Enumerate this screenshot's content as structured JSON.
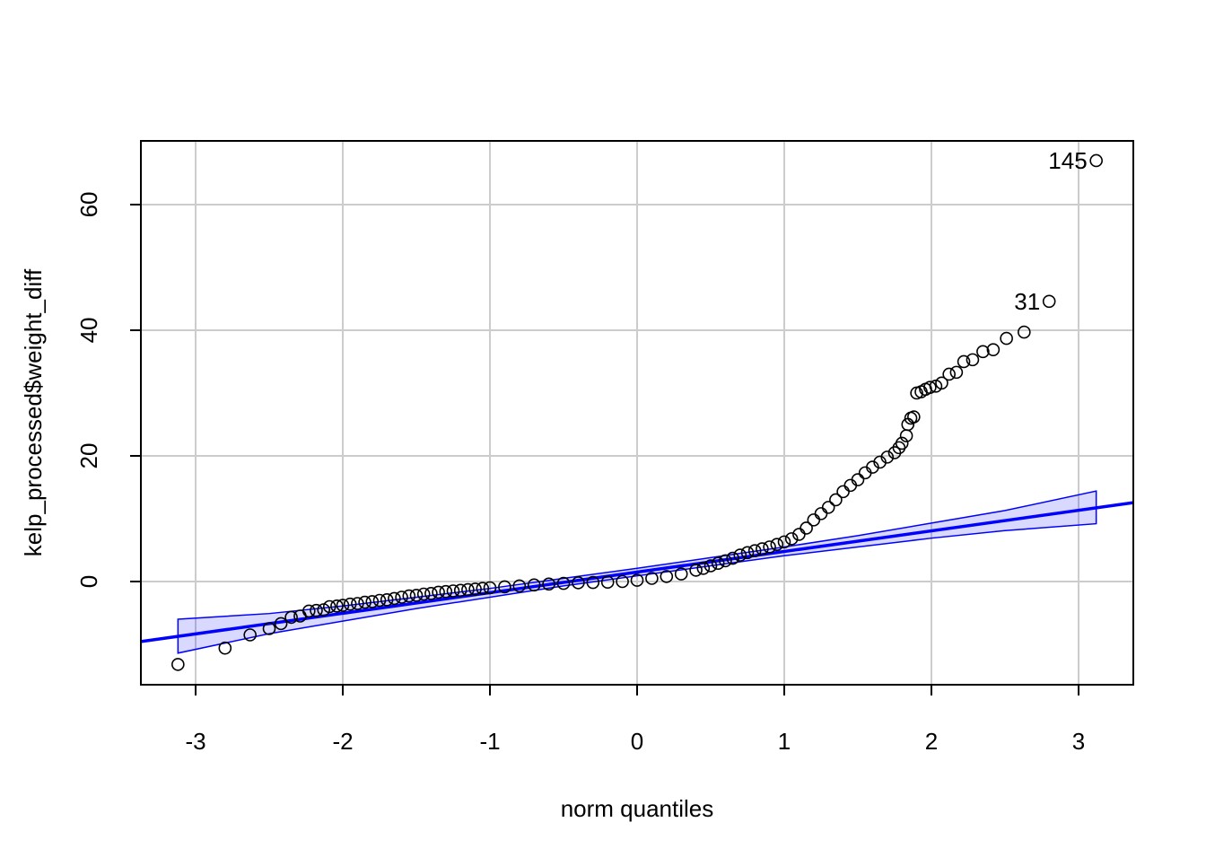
{
  "chart_data": {
    "type": "qqplot",
    "x_label": "norm quantiles",
    "y_label": "kelp_processed$weight_diff",
    "xlim": [
      -3.372,
      3.372
    ],
    "ylim": [
      -16.43,
      70.14
    ],
    "xticks": [
      -3,
      -2,
      -1,
      0,
      1,
      2,
      3
    ],
    "yticks": [
      0,
      20,
      40,
      60
    ],
    "grid": true,
    "point_color": "#000000",
    "line_color": "#0000ff",
    "band_color": "#0000ff",
    "x": [
      -3.12,
      -2.8,
      -2.63,
      -2.5,
      -2.42,
      -2.35,
      -2.29,
      -2.23,
      -2.18,
      -2.13,
      -2.09,
      -2.04,
      -2.0,
      -1.95,
      -1.9,
      -1.85,
      -1.8,
      -1.75,
      -1.7,
      -1.65,
      -1.6,
      -1.55,
      -1.5,
      -1.45,
      -1.4,
      -1.35,
      -1.3,
      -1.25,
      -1.2,
      -1.15,
      -1.1,
      -1.05,
      -1.0,
      -0.9,
      -0.8,
      -0.7,
      -0.6,
      -0.5,
      -0.4,
      -0.3,
      -0.2,
      -0.1,
      0,
      0.1,
      0.2,
      0.3,
      0.4,
      0.45,
      0.5,
      0.55,
      0.6,
      0.65,
      0.7,
      0.75,
      0.8,
      0.85,
      0.9,
      0.95,
      1.0,
      1.05,
      1.1,
      1.15,
      1.2,
      1.25,
      1.3,
      1.35,
      1.4,
      1.45,
      1.5,
      1.55,
      1.6,
      1.65,
      1.7,
      1.75,
      1.78,
      1.8,
      1.83,
      1.84,
      1.86,
      1.88,
      1.9,
      1.93,
      1.96,
      1.99,
      2.03,
      2.07,
      2.12,
      2.17,
      2.22,
      2.28,
      2.35,
      2.42,
      2.51,
      2.63,
      2.8,
      3.12
    ],
    "y": [
      -13.2,
      -10.6,
      -8.5,
      -7.5,
      -6.7,
      -5.7,
      -5.5,
      -4.7,
      -4.6,
      -4.5,
      -4.0,
      -3.9,
      -3.8,
      -3.6,
      -3.5,
      -3.3,
      -3.2,
      -3.0,
      -2.9,
      -2.7,
      -2.5,
      -2.3,
      -2.2,
      -2.0,
      -1.9,
      -1.7,
      -1.6,
      -1.5,
      -1.4,
      -1.3,
      -1.2,
      -1.1,
      -1.0,
      -0.85,
      -0.7,
      -0.55,
      -0.4,
      -0.3,
      -0.2,
      -0.15,
      -0.1,
      0.0,
      0.2,
      0.5,
      0.8,
      1.2,
      1.8,
      2.1,
      2.5,
      2.9,
      3.3,
      3.7,
      4.2,
      4.6,
      4.9,
      5.2,
      5.5,
      5.9,
      6.3,
      6.8,
      7.5,
      8.5,
      9.8,
      10.8,
      11.8,
      13.0,
      14.3,
      15.3,
      16.2,
      17.3,
      18.2,
      19.0,
      19.8,
      20.5,
      21.3,
      22.0,
      23.2,
      25.0,
      26.0,
      26.2,
      30.0,
      30.2,
      30.6,
      30.9,
      31.1,
      31.6,
      33.0,
      33.3,
      35.0,
      35.3,
      36.6,
      36.9,
      38.7,
      39.7,
      44.6,
      67.0
    ],
    "annotations": [
      {
        "text": "145",
        "x": 3.12,
        "y": 67.0
      },
      {
        "text": "31",
        "x": 2.8,
        "y": 44.6
      }
    ],
    "ref_line": {
      "intercept": 1.5,
      "slope": 3.28
    },
    "band": {
      "x": [
        -3.12,
        -2.5,
        -2,
        -1.5,
        -1,
        -0.5,
        0,
        0.5,
        1,
        1.5,
        2,
        2.5,
        3.12
      ],
      "lower": [
        -11.4,
        -8.3,
        -6.3,
        -4.3,
        -2.5,
        -0.7,
        0.9,
        2.5,
        4.1,
        5.5,
        6.9,
        8.1,
        9.2
      ],
      "upper": [
        -6.0,
        -5.1,
        -3.9,
        -2.5,
        -1.1,
        0.5,
        2.1,
        3.8,
        5.5,
        7.3,
        9.3,
        11.3,
        14.4
      ]
    }
  }
}
